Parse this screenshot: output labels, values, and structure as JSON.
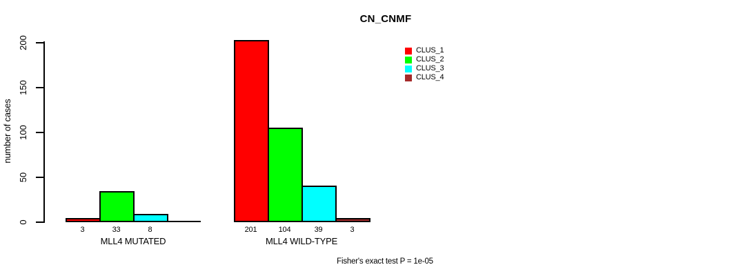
{
  "chart_data": {
    "type": "bar",
    "title": "CN_CNMF",
    "ylabel": "number of cases",
    "xlabel": "",
    "ylim": [
      0,
      200
    ],
    "yticks": [
      0,
      50,
      100,
      150,
      200
    ],
    "grid": false,
    "background_color": "#ffffff",
    "axis_color": "#000000",
    "legend_position": "top-right",
    "series": [
      {
        "name": "CLUS_1",
        "color": "#ff0000"
      },
      {
        "name": "CLUS_2",
        "color": "#00ff00"
      },
      {
        "name": "CLUS_3",
        "color": "#00ffff"
      },
      {
        "name": "CLUS_4",
        "color": "#a52a2a"
      }
    ],
    "groups": [
      {
        "label": "MLL4 MUTATED",
        "values": [
          3,
          33,
          8,
          0
        ],
        "value_labels": [
          "3",
          "33",
          "8",
          ""
        ]
      },
      {
        "label": "MLL4 WILD-TYPE",
        "values": [
          201,
          104,
          39,
          3
        ],
        "value_labels": [
          "201",
          "104",
          "39",
          "3"
        ]
      }
    ],
    "annotation": "Fisher's exact test P = 1e-05"
  }
}
